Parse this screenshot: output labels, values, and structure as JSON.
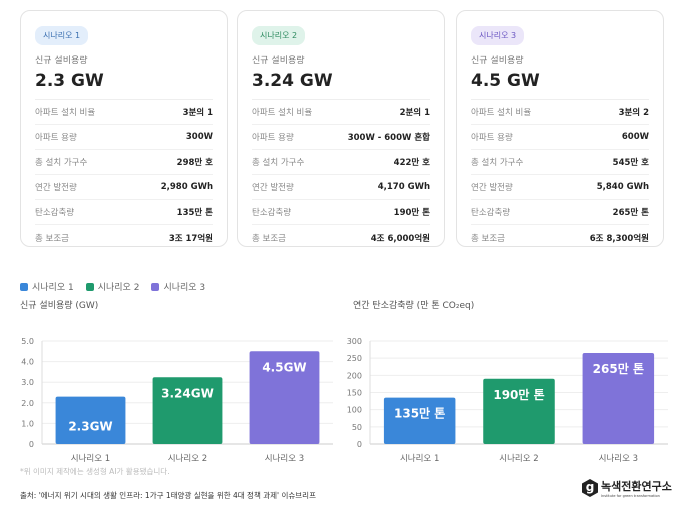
{
  "cards": [
    {
      "badge": "시나리오 1",
      "badge_bg": "#e3eefb",
      "badge_color": "#3a6fb0",
      "label": "신규 설비용량",
      "value": "2.3 GW",
      "rows": [
        {
          "k": "아파트 설치 비율",
          "v": "3분의 1"
        },
        {
          "k": "아파트 용량",
          "v": "300W"
        },
        {
          "k": "총 설치 가구수",
          "v": "298만 호"
        },
        {
          "k": "연간 발전량",
          "v": "2,980 GWh"
        },
        {
          "k": "탄소감축량",
          "v": "135만 톤"
        },
        {
          "k": "총 보조금",
          "v": "3조 17억원"
        }
      ]
    },
    {
      "badge": "시나리오 2",
      "badge_bg": "#dff3ea",
      "badge_color": "#2c8a5f",
      "label": "신규 설비용량",
      "value": "3.24 GW",
      "rows": [
        {
          "k": "아파트 설치 비율",
          "v": "2분의 1"
        },
        {
          "k": "아파트 용량",
          "v": "300W - 600W 혼합"
        },
        {
          "k": "총 설치 가구수",
          "v": "422만 호"
        },
        {
          "k": "연간 발전량",
          "v": "4,170 GWh"
        },
        {
          "k": "탄소감축량",
          "v": "190만 톤"
        },
        {
          "k": "총 보조금",
          "v": "4조 6,000억원"
        }
      ]
    },
    {
      "badge": "시나리오 3",
      "badge_bg": "#ebe6f9",
      "badge_color": "#6a55c2",
      "label": "신규 설비용량",
      "value": "4.5 GW",
      "rows": [
        {
          "k": "아파트 설치 비율",
          "v": "3분의 2"
        },
        {
          "k": "아파트 용량",
          "v": "600W"
        },
        {
          "k": "총 설치 가구수",
          "v": "545만 호"
        },
        {
          "k": "연간 발전량",
          "v": "5,840 GWh"
        },
        {
          "k": "탄소감축량",
          "v": "265만 톤"
        },
        {
          "k": "총 보조금",
          "v": "6조 8,300억원"
        }
      ]
    }
  ],
  "legend": [
    {
      "name": "시나리오 1",
      "color": "#3a87d9"
    },
    {
      "name": "시나리오 2",
      "color": "#1f9a6d"
    },
    {
      "name": "시나리오 3",
      "color": "#7f73d9"
    }
  ],
  "chart_data": [
    {
      "type": "bar",
      "title": "신규 설비용량 (GW)",
      "categories": [
        "시나리오 1",
        "시나리오 2",
        "시나리오 3"
      ],
      "values": [
        2.3,
        3.24,
        4.5
      ],
      "data_labels": [
        "2.3GW",
        "3.24GW",
        "4.5GW"
      ],
      "ylim": [
        0,
        5
      ],
      "yticks": [
        "0",
        "1.0",
        "2.0",
        "3.0",
        "4.0",
        "5.0"
      ],
      "grid": true
    },
    {
      "type": "bar",
      "title": "연간 탄소감축량 (만 톤 CO₂eq)",
      "categories": [
        "시나리오 1",
        "시나리오 2",
        "시나리오 3"
      ],
      "values": [
        135,
        190,
        265
      ],
      "data_labels": [
        "135만 톤",
        "190만 톤",
        "265만 톤"
      ],
      "ylim": [
        0,
        300
      ],
      "yticks": [
        "0",
        "50",
        "100",
        "150",
        "200",
        "250",
        "300"
      ],
      "grid": true
    }
  ],
  "footer": {
    "note": "*위 이미지 제작에는 생성형 AI가 활용됐습니다.",
    "source": "출처: '에너지 위기 시대의 생활 인프라: 1가구 1태양광 실현을 위한 4대 정책 과제' 이슈브리프",
    "logo": "녹색전환연구소",
    "logo_sub": "Institute for green transformation"
  }
}
